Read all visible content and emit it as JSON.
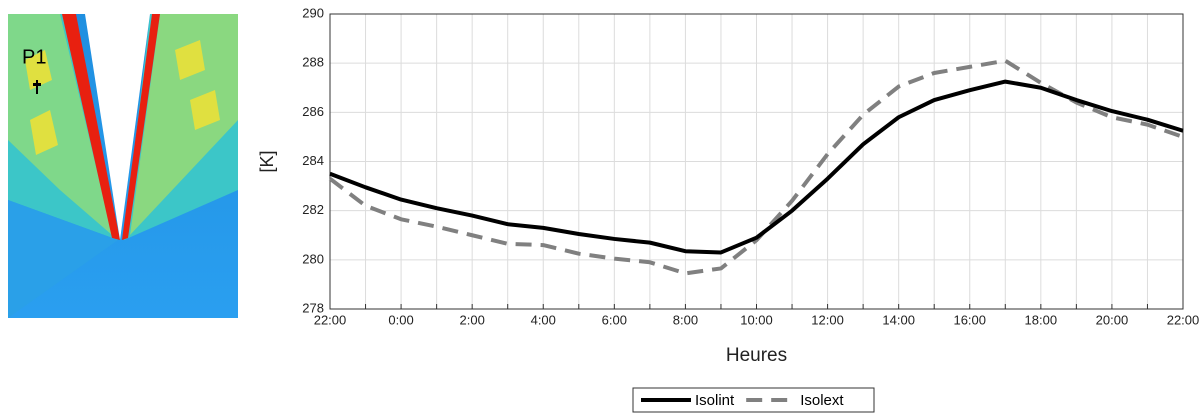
{
  "image_label": "P1",
  "chart_data": {
    "type": "line",
    "categories": [
      "22:00",
      null,
      "0:00",
      null,
      "2:00",
      null,
      "4:00",
      null,
      "6:00",
      null,
      "8:00",
      null,
      "10:00",
      null,
      "12:00",
      null,
      "14:00",
      null,
      "16:00",
      null,
      "18:00",
      null,
      "20:00",
      null,
      "22:00"
    ],
    "series": [
      {
        "name": "Isolint",
        "color": "#000000",
        "line_style": "solid",
        "values": [
          283.5,
          282.95,
          282.45,
          282.1,
          281.8,
          281.45,
          281.3,
          281.05,
          280.85,
          280.7,
          280.35,
          280.3,
          280.9,
          282.0,
          283.3,
          284.7,
          285.8,
          286.5,
          286.9,
          287.25,
          287.0,
          286.5,
          286.05,
          285.7,
          285.25
        ]
      },
      {
        "name": "Isolext",
        "color": "#808080",
        "line_style": "dashed",
        "values": [
          283.3,
          282.2,
          281.65,
          281.35,
          281.0,
          280.65,
          280.6,
          280.25,
          280.05,
          279.9,
          279.45,
          279.65,
          280.8,
          282.4,
          284.3,
          285.9,
          287.05,
          287.6,
          287.85,
          288.1,
          287.2,
          286.4,
          285.8,
          285.5,
          285.0
        ]
      }
    ],
    "ylim": [
      278,
      290
    ],
    "yticks": [
      278,
      280,
      282,
      284,
      286,
      288,
      290
    ],
    "y_label": "[K]",
    "x_label": "Heures",
    "grid": true,
    "legend": "bottom"
  }
}
